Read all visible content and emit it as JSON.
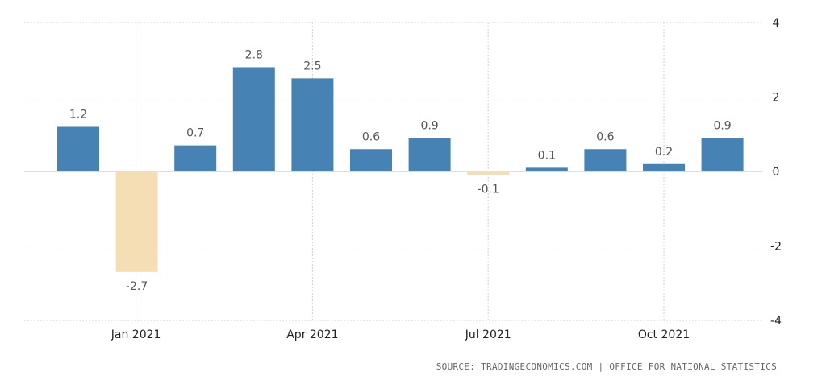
{
  "chart_data": {
    "type": "bar",
    "months": [
      "Dec 2020",
      "Jan 2021",
      "Feb 2021",
      "Mar 2021",
      "Apr 2021",
      "May 2021",
      "Jun 2021",
      "Jul 2021",
      "Aug 2021",
      "Sep 2021",
      "Oct 2021",
      "Nov 2021"
    ],
    "values": [
      1.2,
      -2.7,
      0.7,
      2.8,
      2.5,
      0.6,
      0.9,
      -0.1,
      0.1,
      0.6,
      0.2,
      0.9
    ],
    "data_labels": [
      "1.2",
      "-2.7",
      "0.7",
      "2.8",
      "2.5",
      "0.6",
      "0.9",
      "-0.1",
      "0.1",
      "0.6",
      "0.2",
      "0.9"
    ],
    "x_tick_labels": [
      "Jan 2021",
      "Apr 2021",
      "Jul 2021",
      "Oct 2021"
    ],
    "x_tick_months": [
      "Jan 2021",
      "Apr 2021",
      "Jul 2021",
      "Oct 2021"
    ],
    "y_ticks": [
      4,
      2,
      0,
      -2,
      -4
    ],
    "y_tick_labels": [
      "4",
      "2",
      "0",
      "-2",
      "-4"
    ],
    "ylim": [
      -4,
      4
    ],
    "grid": true,
    "positive_color": "#4682b4",
    "negative_color": "#f5deb3"
  },
  "source": "SOURCE: TRADINGECONOMICS.COM | OFFICE FOR NATIONAL STATISTICS"
}
